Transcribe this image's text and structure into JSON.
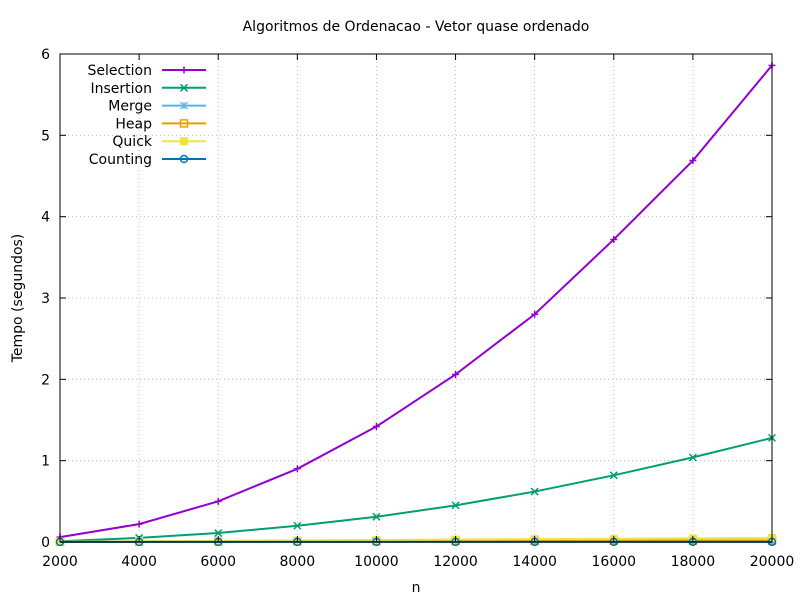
{
  "chart_data": {
    "type": "line",
    "title": "Algoritmos de Ordenacao - Vetor quase ordenado",
    "xlabel": "n",
    "ylabel": "Tempo (segundos)",
    "xlim": [
      2000,
      20000
    ],
    "ylim": [
      0,
      6
    ],
    "x_ticks": [
      2000,
      4000,
      6000,
      8000,
      10000,
      12000,
      14000,
      16000,
      18000,
      20000
    ],
    "y_ticks": [
      0,
      1,
      2,
      3,
      4,
      5,
      6
    ],
    "grid": true,
    "legend_position": "top-left",
    "x": [
      2000,
      4000,
      6000,
      8000,
      10000,
      12000,
      14000,
      16000,
      18000,
      20000
    ],
    "series": [
      {
        "name": "Selection",
        "color": "#9400d3",
        "marker": "plus",
        "values": [
          0.06,
          0.22,
          0.5,
          0.9,
          1.42,
          2.06,
          2.8,
          3.72,
          4.69,
          5.86
        ]
      },
      {
        "name": "Insertion",
        "color": "#009e73",
        "marker": "cross",
        "values": [
          0.01,
          0.05,
          0.11,
          0.2,
          0.31,
          0.45,
          0.62,
          0.82,
          1.04,
          1.28
        ]
      },
      {
        "name": "Merge",
        "color": "#56b4e9",
        "marker": "star",
        "values": [
          0.001,
          0.002,
          0.003,
          0.004,
          0.005,
          0.006,
          0.007,
          0.008,
          0.009,
          0.01
        ]
      },
      {
        "name": "Heap",
        "color": "#e69f00",
        "marker": "square",
        "values": [
          0.002,
          0.004,
          0.006,
          0.008,
          0.01,
          0.012,
          0.014,
          0.016,
          0.018,
          0.02
        ]
      },
      {
        "name": "Quick",
        "color": "#f0e442",
        "marker": "filled-square",
        "values": [
          0.005,
          0.01,
          0.015,
          0.02,
          0.025,
          0.03,
          0.035,
          0.04,
          0.045,
          0.05
        ]
      },
      {
        "name": "Counting",
        "color": "#0072b2",
        "marker": "circle",
        "values": [
          0.001,
          0.001,
          0.001,
          0.001,
          0.001,
          0.001,
          0.001,
          0.001,
          0.002,
          0.002
        ]
      }
    ]
  }
}
